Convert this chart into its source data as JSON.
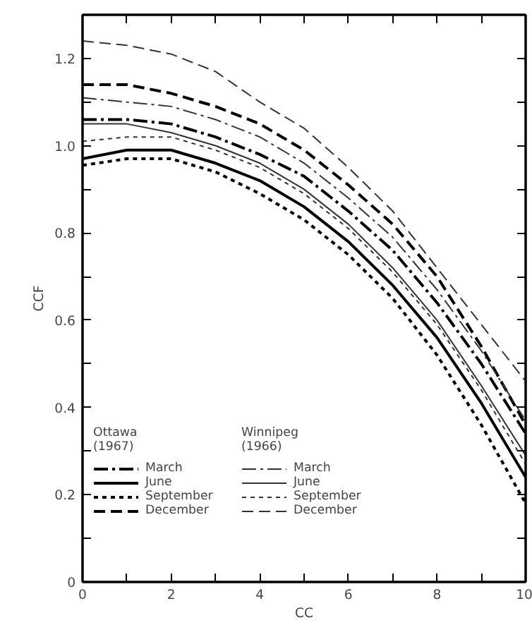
{
  "chart_data": {
    "type": "line",
    "xlabel": "CC",
    "ylabel": "CCF",
    "x": [
      0,
      1,
      2,
      3,
      4,
      5,
      6,
      7,
      8,
      9,
      10
    ],
    "xlim": [
      0,
      10
    ],
    "ylim": [
      0,
      1.3
    ],
    "xticks": [
      0,
      {
        "value": 1,
        "label": null
      },
      2,
      {
        "value": 3,
        "label": null
      },
      4,
      {
        "value": 5,
        "label": null
      },
      6,
      {
        "value": 7,
        "label": null
      },
      8,
      {
        "value": 9,
        "label": null
      },
      10
    ],
    "yticks": [
      0,
      {
        "value": 0.1,
        "label": null
      },
      0.2,
      {
        "value": 0.3,
        "label": null
      },
      0.4,
      {
        "value": 0.5,
        "label": null
      },
      0.6,
      {
        "value": 0.7,
        "label": null
      },
      0.8,
      {
        "value": 0.9,
        "label": null
      },
      {
        "value": 1.0,
        "label": "1.0"
      },
      {
        "value": 1.1,
        "label": null
      },
      1.2
    ],
    "grid": false,
    "legend": "bottom left",
    "annotations": [
      "Ottawa\n(1967)",
      "Winnipeg\n(1966)"
    ],
    "series": [
      {
        "name": "March",
        "color": "#000000",
        "line_style": "dashdot",
        "values": [
          1.06,
          1.06,
          1.05,
          1.02,
          0.98,
          0.93,
          0.85,
          0.76,
          0.64,
          0.5,
          0.34
        ]
      },
      {
        "name": "June",
        "color": "#000000",
        "line_style": "solid",
        "values": [
          0.97,
          0.99,
          0.99,
          0.96,
          0.92,
          0.86,
          0.78,
          0.68,
          0.56,
          0.41,
          0.24
        ]
      },
      {
        "name": "September",
        "color": "#000000",
        "line_style": "dotted",
        "values": [
          0.955,
          0.97,
          0.97,
          0.94,
          0.89,
          0.83,
          0.75,
          0.65,
          0.52,
          0.36,
          0.18
        ]
      },
      {
        "name": "December",
        "color": "#000000",
        "line_style": "dashed",
        "values": [
          1.14,
          1.14,
          1.12,
          1.09,
          1.05,
          0.99,
          0.91,
          0.82,
          0.7,
          0.54,
          0.36
        ]
      },
      {
        "name": "March",
        "color": "#333333",
        "line_style": "dashdot",
        "values": [
          1.11,
          1.1,
          1.09,
          1.06,
          1.02,
          0.96,
          0.88,
          0.79,
          0.67,
          0.53,
          0.37
        ]
      },
      {
        "name": "June",
        "color": "#333333",
        "line_style": "solid",
        "values": [
          1.05,
          1.05,
          1.03,
          1.0,
          0.96,
          0.9,
          0.82,
          0.72,
          0.6,
          0.45,
          0.29
        ]
      },
      {
        "name": "September",
        "color": "#333333",
        "line_style": "dotted",
        "values": [
          1.01,
          1.02,
          1.02,
          0.99,
          0.95,
          0.89,
          0.81,
          0.71,
          0.59,
          0.44,
          0.27
        ]
      },
      {
        "name": "December",
        "color": "#333333",
        "line_style": "dashed",
        "values": [
          1.24,
          1.23,
          1.21,
          1.17,
          1.1,
          1.04,
          0.95,
          0.85,
          0.72,
          0.59,
          0.46
        ]
      }
    ]
  }
}
